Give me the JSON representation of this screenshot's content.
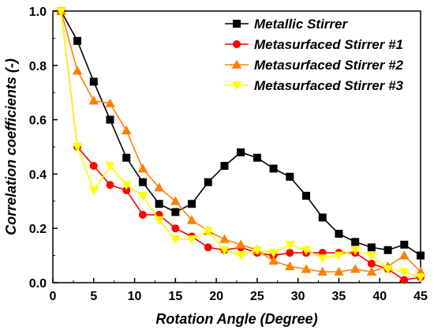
{
  "chart_data": {
    "type": "line",
    "title": "",
    "xlabel": "Rotation Angle (Degree)",
    "ylabel": "Correlation coefficients (-)",
    "xlim": [
      0,
      45
    ],
    "ylim": [
      0,
      1.0
    ],
    "xticks": [
      0,
      5,
      10,
      15,
      20,
      25,
      30,
      35,
      40,
      45
    ],
    "yticks": [
      0.0,
      0.2,
      0.4,
      0.6,
      0.8,
      1.0
    ],
    "xtick_labels": [
      "0",
      "5",
      "10",
      "15",
      "20",
      "25",
      "30",
      "35",
      "40",
      "45"
    ],
    "ytick_labels": [
      "0.0",
      "0.2",
      "0.4",
      "0.6",
      "0.8",
      "1.0"
    ],
    "grid": false,
    "legend_position": "top-right",
    "x": [
      1,
      3,
      5,
      7,
      9,
      11,
      13,
      15,
      17,
      19,
      21,
      23,
      25,
      27,
      29,
      31,
      33,
      35,
      37,
      39,
      41,
      43,
      45
    ],
    "series": [
      {
        "name": "Metallic Stirrer",
        "color": "#000000",
        "marker": "square",
        "values": [
          1.0,
          0.89,
          0.74,
          0.6,
          0.46,
          0.37,
          0.29,
          0.26,
          0.29,
          0.37,
          0.43,
          0.48,
          0.46,
          0.42,
          0.39,
          0.32,
          0.24,
          0.18,
          0.15,
          0.13,
          0.12,
          0.14,
          0.1
        ]
      },
      {
        "name": "Metasurfaced Stirrer #1",
        "color": "#ff0000",
        "marker": "circle",
        "values": [
          1.0,
          0.5,
          0.43,
          0.36,
          0.34,
          0.25,
          0.25,
          0.2,
          0.17,
          0.13,
          0.12,
          0.13,
          0.11,
          0.1,
          0.11,
          0.11,
          0.11,
          0.11,
          0.11,
          0.07,
          0.05,
          0.01,
          0.02
        ]
      },
      {
        "name": "Metasurfaced Stirrer #2",
        "color": "#ff8000",
        "marker": "triangle-up",
        "values": [
          1.0,
          0.78,
          0.67,
          0.66,
          0.56,
          0.42,
          0.35,
          0.3,
          0.23,
          0.19,
          0.16,
          0.14,
          0.12,
          0.08,
          0.06,
          0.05,
          0.04,
          0.04,
          0.05,
          0.04,
          0.06,
          0.1,
          0.04
        ]
      },
      {
        "name": "Metasurfaced Stirrer #3",
        "color": "#ffff00",
        "marker": "triangle-down",
        "values": [
          1.0,
          0.5,
          0.34,
          0.43,
          0.36,
          0.32,
          0.23,
          0.16,
          0.16,
          0.19,
          0.12,
          0.1,
          0.12,
          0.11,
          0.14,
          0.12,
          0.09,
          0.1,
          0.12,
          0.1,
          0.05,
          0.04,
          0.02
        ]
      }
    ]
  }
}
